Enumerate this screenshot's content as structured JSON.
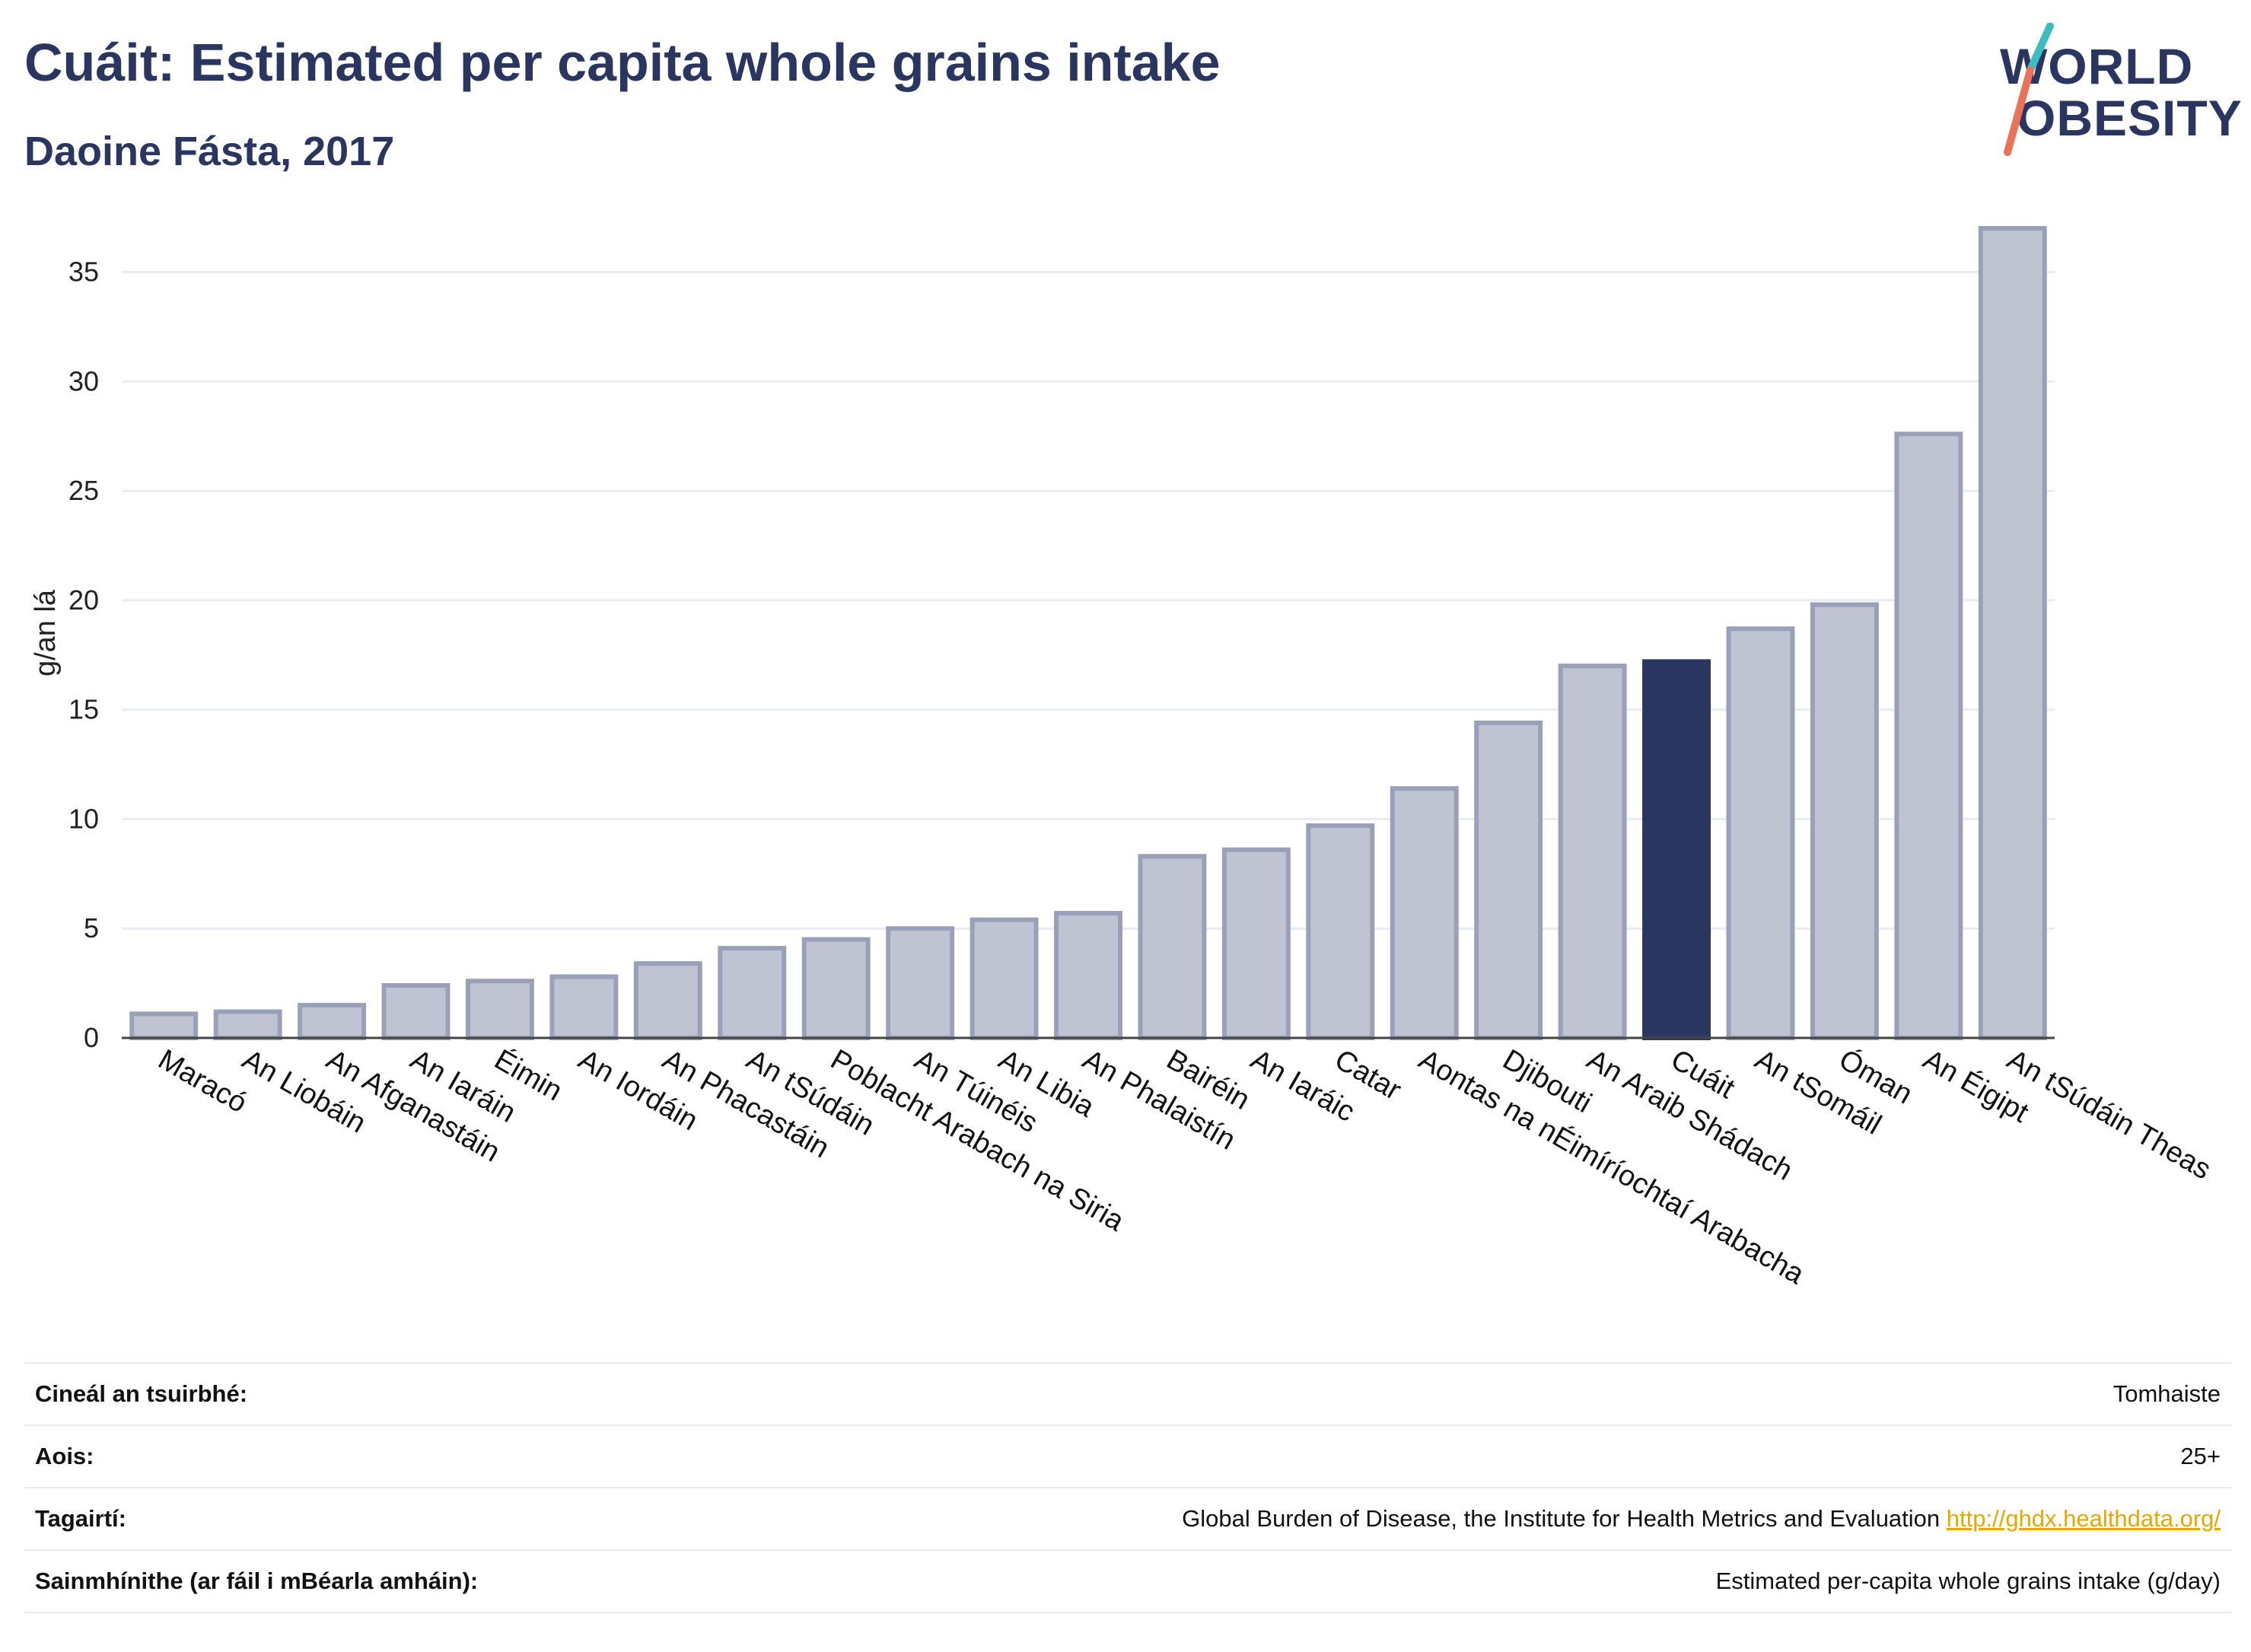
{
  "header": {
    "title": "Cuáit: Estimated per capita whole grains intake",
    "subtitle": "Daoine Fásta, 2017"
  },
  "logo": {
    "line1": "WORLD",
    "line2": "OBESITY",
    "icon": "world-obesity-slash-logo",
    "colors": {
      "text": "#2a3560",
      "slash_top": "#3dbdbd",
      "slash_bottom": "#e8735a"
    }
  },
  "chart_data": {
    "type": "bar",
    "title": "",
    "xlabel": "",
    "ylabel": "g/an lá",
    "ylim": [
      0,
      37
    ],
    "yticks": [
      0,
      5,
      10,
      15,
      20,
      25,
      30,
      35
    ],
    "grid": true,
    "highlight": "Cuáit",
    "categories": [
      "Maracó",
      "An Liobáin",
      "An Afganastáin",
      "An Iaráin",
      "Éimin",
      "An Iordáin",
      "An Phacastáin",
      "An tSúdáin",
      "Poblacht Arabach na Siria",
      "An Túinéis",
      "An Libia",
      "An Phalaistín",
      "Bairéin",
      "An Iaráic",
      "Catar",
      "Aontas na nÉimíríochtaí Arabacha",
      "Djibouti",
      "An Araib Shádach",
      "Cuáit",
      "An tSomáil",
      "Óman",
      "An Éigipt",
      "An tSúdáin Theas"
    ],
    "values": [
      1.1,
      1.2,
      1.5,
      2.4,
      2.6,
      2.8,
      3.4,
      4.1,
      4.5,
      5.0,
      5.4,
      5.7,
      8.3,
      8.6,
      9.7,
      11.4,
      14.4,
      17.0,
      17.2,
      18.7,
      19.8,
      27.6,
      37.0
    ],
    "colors": {
      "bar_fill": "#c0c4d2",
      "bar_stroke": "#9aa0b8",
      "highlight_fill": "#2a3560",
      "grid": "#e8ebf0",
      "axis": "#444444"
    }
  },
  "info": {
    "rows": [
      {
        "label": "Cineál an tsuirbhé:",
        "value": "Tomhaiste"
      },
      {
        "label": "Aois:",
        "value": "25+"
      },
      {
        "label": "Tagairtí:",
        "value": "Global Burden of Disease, the Institute for Health Metrics and Evaluation",
        "link": "http://ghdx.healthdata.org/"
      },
      {
        "label": "Sainmhínithe (ar fáil i mBéarla amháin):",
        "value": "Estimated per-capita whole grains intake (g/day)"
      }
    ]
  }
}
